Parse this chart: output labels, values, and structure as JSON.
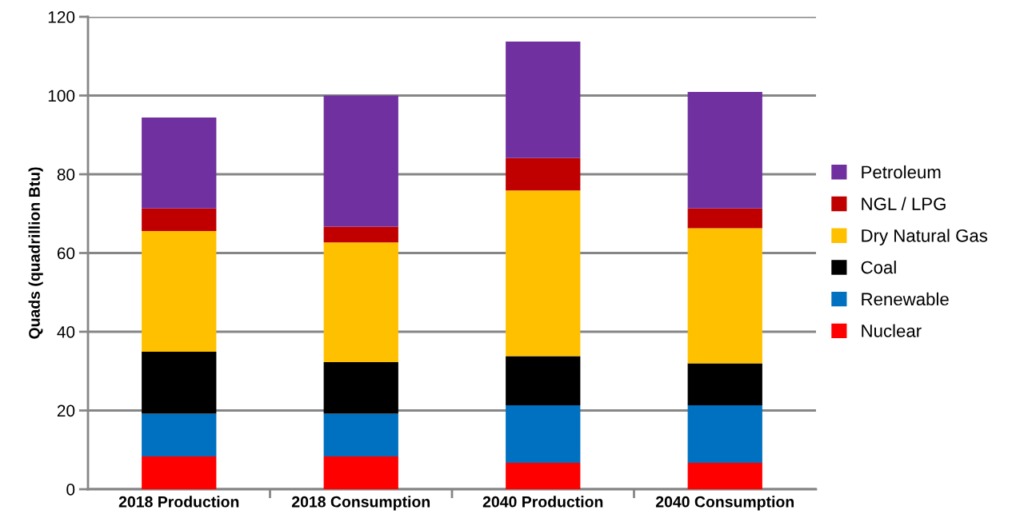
{
  "chart_data": {
    "type": "bar",
    "stacked": true,
    "ylabel": "Quads (quadrillion Btu)",
    "categories": [
      "2018 Production",
      "2018 Consumption",
      "2040 Production",
      "2040 Consumption"
    ],
    "series": [
      {
        "name": "Nuclear",
        "color": "#ff0000",
        "values": [
          8.3,
          8.3,
          6.7,
          6.7
        ]
      },
      {
        "name": "Renewable",
        "color": "#0070c0",
        "values": [
          10.9,
          10.9,
          14.6,
          14.6
        ]
      },
      {
        "name": "Coal",
        "color": "#000000",
        "values": [
          15.7,
          13.1,
          12.5,
          10.7
        ]
      },
      {
        "name": "Dry Natural Gas",
        "color": "#ffc000",
        "values": [
          30.7,
          30.4,
          42.1,
          34.3
        ]
      },
      {
        "name": "NGL / LPG",
        "color": "#c00000",
        "values": [
          5.7,
          4.0,
          8.2,
          5.0
        ]
      },
      {
        "name": "Petroleum",
        "color": "#7030a0",
        "values": [
          23.1,
          33.3,
          29.6,
          29.6
        ]
      }
    ],
    "ylim": [
      0,
      120
    ],
    "yticks": [
      0,
      20,
      40,
      60,
      80,
      100,
      120
    ],
    "grid": "y",
    "legend": "right"
  }
}
